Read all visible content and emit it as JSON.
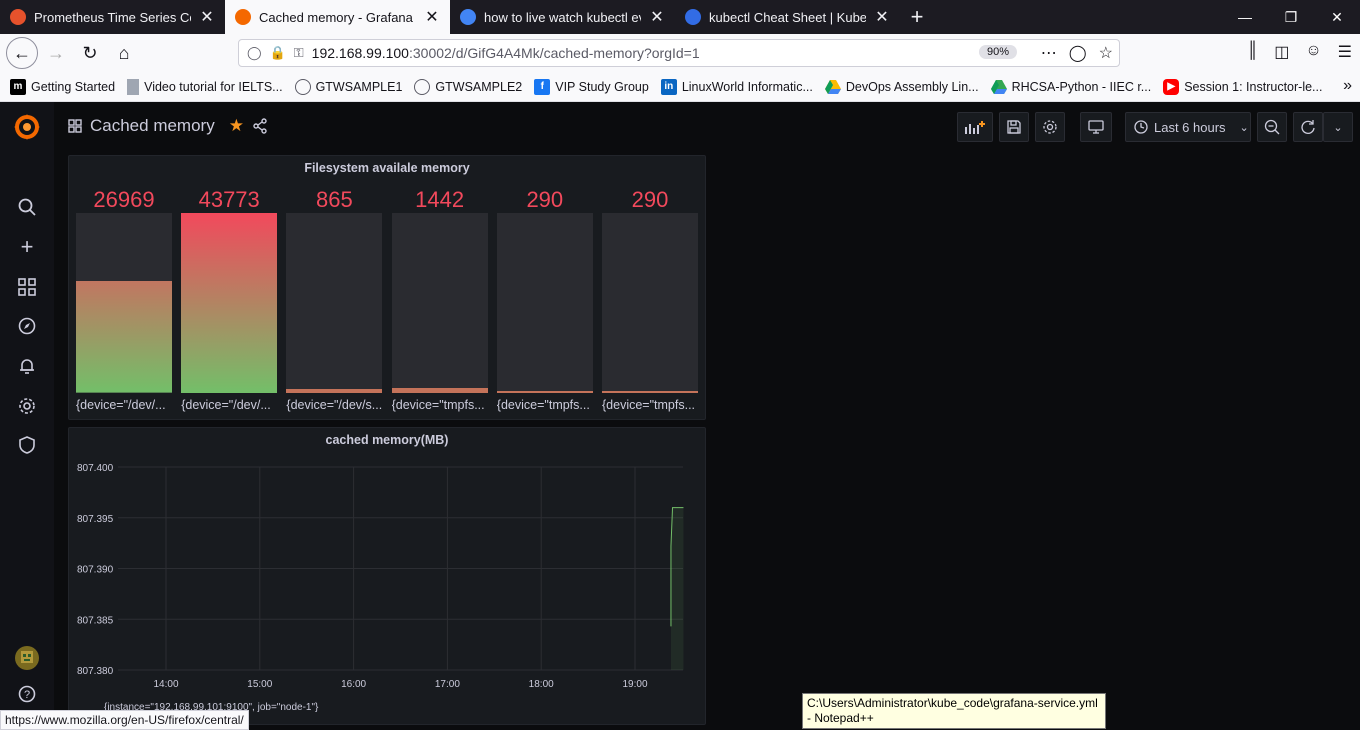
{
  "browser": {
    "tabs": [
      {
        "title": "Prometheus Time Series Collecti...",
        "color": "#e6522c",
        "active": false
      },
      {
        "title": "Cached memory - Grafana",
        "color": "#f46800",
        "active": true
      },
      {
        "title": "how to live watch kubectl event...",
        "color": "#4285f4",
        "active": false
      },
      {
        "title": "kubectl Cheat Sheet | Kubernetes",
        "color": "#326ce5",
        "active": false
      }
    ],
    "url_host": "192.168.99.100",
    "url_rest": ":30002/d/GifG4A4Mk/cached-memory?orgId=1",
    "zoom": "90%",
    "bookmarks": [
      {
        "label": "Getting Started",
        "icon": "m",
        "color": "#000000"
      },
      {
        "label": "Video tutorial for IELTS...",
        "icon": "doc",
        "color": "#9fa6b2"
      },
      {
        "label": "GTWSAMPLE1",
        "icon": "globe",
        "color": "#5b5b66"
      },
      {
        "label": "GTWSAMPLE2",
        "icon": "globe",
        "color": "#5b5b66"
      },
      {
        "label": "VIP Study Group",
        "icon": "f",
        "color": "#1877f2"
      },
      {
        "label": "LinuxWorld Informatic...",
        "icon": "in",
        "color": "#0a66c2"
      },
      {
        "label": "DevOps Assembly Lin...",
        "icon": "drive",
        "color": "#fbbc04"
      },
      {
        "label": "RHCSA-Python - IIEC r...",
        "icon": "drive",
        "color": "#34a853"
      },
      {
        "label": "Session 1: Instructor-le...",
        "icon": "yt",
        "color": "#ff0000"
      }
    ],
    "status_link": "https://www.mozilla.org/en-US/firefox/central/",
    "tooltip_line1": "C:\\Users\\Administrator\\kube_code\\grafana-service.yml",
    "tooltip_line2": "- Notepad++"
  },
  "grafana": {
    "dashboard_title": "Cached memory",
    "time_picker": "Last 6 hours",
    "panel1": {
      "title": "Filesystem availale memory",
      "gauges": [
        {
          "value": "26969",
          "label": "{device=\"/dev/...",
          "fill": 0.62
        },
        {
          "value": "43773",
          "label": "{device=\"/dev/...",
          "fill": 1.0
        },
        {
          "value": "865",
          "label": "{device=\"/dev/s...",
          "fill": 0.02
        },
        {
          "value": "1442",
          "label": "{device=\"tmpfs...",
          "fill": 0.03
        },
        {
          "value": "290",
          "label": "{device=\"tmpfs...",
          "fill": 0.007
        },
        {
          "value": "290",
          "label": "{device=\"tmpfs...",
          "fill": 0.007
        }
      ]
    },
    "panel2": {
      "title": "cached memory(MB)",
      "legend": "{instance=\"192.168.99.101:9100\", job=\"node-1\"}"
    }
  },
  "chart_data": {
    "type": "line",
    "title": "cached memory(MB)",
    "xlabel": "",
    "ylabel": "",
    "x_ticks": [
      "14:00",
      "15:00",
      "16:00",
      "17:00",
      "18:00",
      "19:00"
    ],
    "y_ticks": [
      "807.400",
      "807.395",
      "807.390",
      "807.385",
      "807.380"
    ],
    "ylim": [
      807.38,
      807.4
    ],
    "grid": true,
    "series": [
      {
        "name": "{instance=\"192.168.99.101:9100\", job=\"node-1\"}",
        "color": "#73bf69",
        "x": [
          "19:23",
          "19:23",
          "19:24",
          "19:31"
        ],
        "values": [
          807.3843,
          807.3922,
          807.396,
          807.396
        ]
      }
    ]
  }
}
